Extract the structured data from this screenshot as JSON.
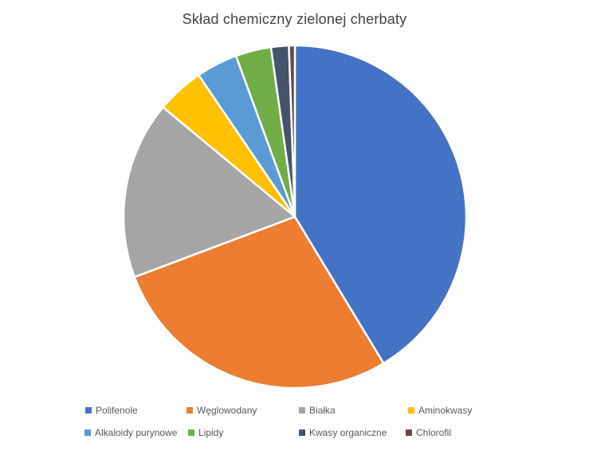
{
  "title": "Skład chemiczny zielonej cherbaty",
  "chart_data": {
    "type": "pie",
    "title": "Skład chemiczny zielonej cherbaty",
    "categories": [
      "Polifenole",
      "Węglowodany",
      "Białka",
      "Aminokwasy",
      "Alkaloidy purynowe",
      "Lipidy",
      "Kwasy organiczne",
      "Chlorofil"
    ],
    "values": [
      37,
      25,
      15,
      4,
      3.5,
      3,
      1.5,
      0.5
    ],
    "colors": [
      "#4472C4",
      "#ED7D31",
      "#A5A5A5",
      "#FFC000",
      "#5B9BD5",
      "#70AD47",
      "#44546A",
      "#8E4A2E"
    ],
    "pattern_slice": "Chlorofil",
    "pattern_accent_color": "#474A5A",
    "slice_border_color": "#FFFFFF",
    "start_angle_deg": 0,
    "direction": "clockwise",
    "legend_position": "bottom",
    "legend_rows": [
      [
        "Polifenole",
        "Węglowodany",
        "Białka",
        "Aminokwasy"
      ],
      [
        "Alkaloidy purynowe",
        "Lipidy",
        "Kwasy organiczne",
        "Chlorofil"
      ]
    ],
    "title_color": "#444444",
    "legend_text_color": "#595959",
    "background_color": "#FFFFFF"
  }
}
